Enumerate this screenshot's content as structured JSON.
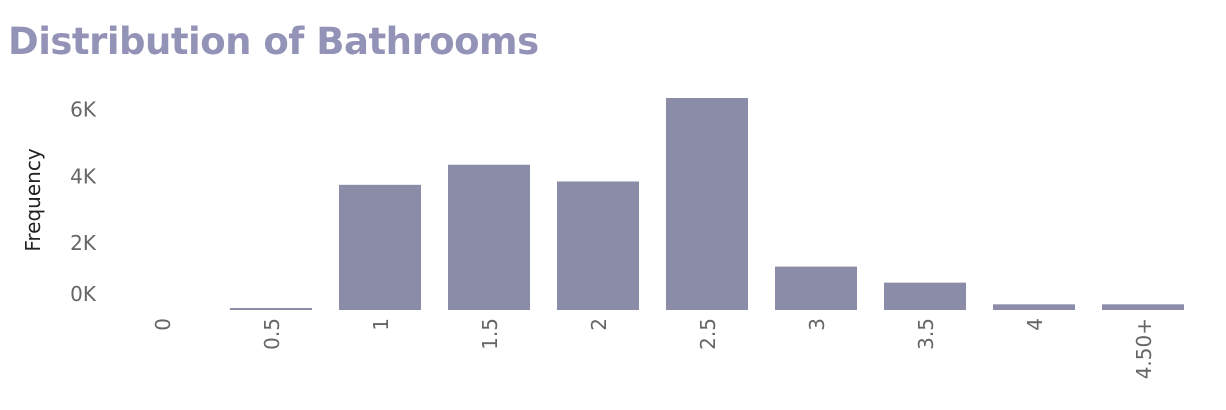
{
  "chart_data": {
    "type": "bar",
    "title": "Distribution of Bathrooms",
    "xlabel": "",
    "ylabel": "Frequency",
    "categories": [
      "0",
      "0.5",
      "1",
      "1.5",
      "2",
      "2.5",
      "3",
      "3.5",
      "4",
      "4.50+"
    ],
    "values": [
      0,
      50,
      3750,
      4350,
      3850,
      6350,
      1300,
      820,
      170,
      170
    ],
    "y_ticks": [
      {
        "value": 0,
        "label": "0K"
      },
      {
        "value": 2000,
        "label": "2K"
      },
      {
        "value": 4000,
        "label": "4K"
      },
      {
        "value": 6000,
        "label": "6K"
      }
    ],
    "ylim": [
      0,
      6500
    ],
    "grid": false,
    "legend": "none",
    "bar_color": "#8a8ca8",
    "title_color": "#9393b7"
  }
}
